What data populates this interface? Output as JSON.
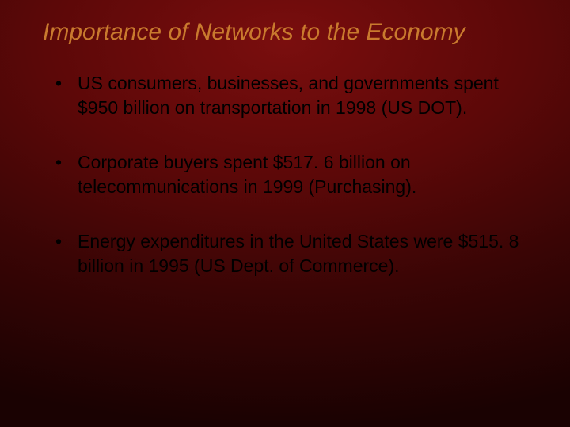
{
  "slide": {
    "title": "Importance of Networks to the Economy",
    "title_color": "#c97a2e",
    "title_fontsize": 30,
    "title_style": "italic",
    "body_color": "#000000",
    "body_fontsize": 23,
    "background": {
      "type": "radial-gradient",
      "stops": [
        "#7a0e0e",
        "#5c0808",
        "#3a0505",
        "#1a0202"
      ]
    },
    "bullets": [
      "US consumers, businesses, and governments spent $950 billion on transportation in 1998 (US DOT).",
      "Corporate buyers spent $517. 6 billion on telecommunications in 1999 (Purchasing).",
      "Energy expenditures in the United States were $515. 8 billion in 1995 (US Dept. of Commerce)."
    ]
  }
}
